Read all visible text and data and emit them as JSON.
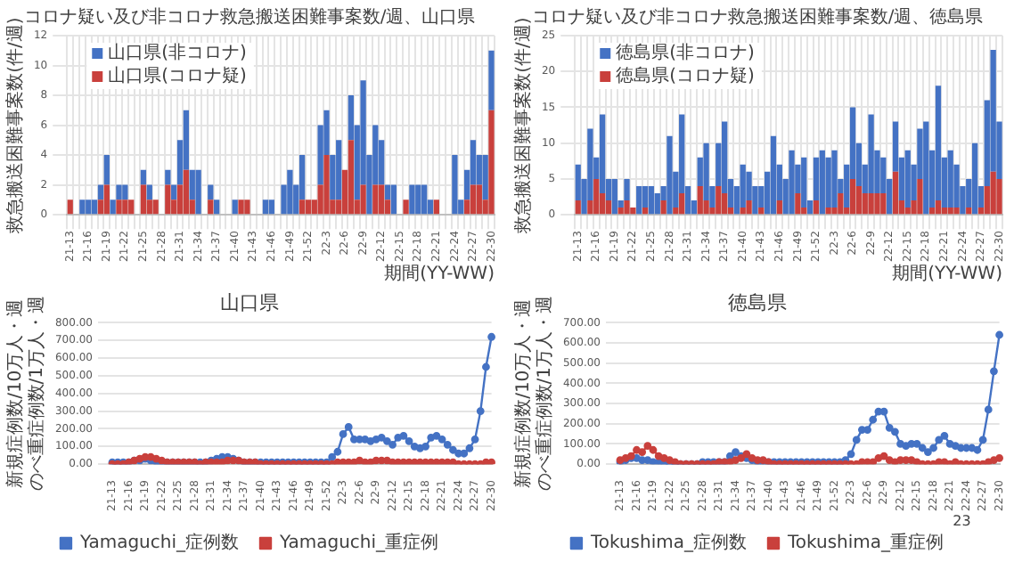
{
  "chart_data": [
    {
      "type": "bar",
      "title": "コロナ疑い及び非コロナ救急搬送困難事案数/週、山口県",
      "xlabel": "期間(YY-WW)",
      "ylabel": "救急搬送困難事案数(件/週)",
      "stacked": true,
      "grid": true,
      "legend": "top left",
      "categories": [
        "21-13",
        null,
        null,
        "21-16",
        null,
        null,
        "21-19",
        null,
        null,
        "21-22",
        null,
        null,
        "21-25",
        null,
        null,
        "21-28",
        null,
        null,
        "21-31",
        null,
        null,
        "21-34",
        null,
        null,
        "21-37",
        null,
        null,
        "21-40",
        null,
        null,
        "21-43",
        null,
        null,
        "21-46",
        null,
        null,
        "21-49",
        null,
        null,
        "21-52",
        null,
        null,
        "22-3",
        null,
        null,
        "22-6",
        null,
        null,
        "22-9",
        null,
        null,
        "22-12",
        null,
        null,
        "22-15",
        null,
        null,
        "22-18",
        null,
        null,
        "22-21",
        null,
        null,
        "22-24",
        null,
        null,
        "22-27",
        null,
        null,
        "22-30"
      ],
      "ylim": [
        0,
        12
      ],
      "yticks": [
        0,
        2,
        4,
        6,
        8,
        10,
        12
      ],
      "series": [
        {
          "name": "山口県(コロナ疑)",
          "color": "#c9403c",
          "values": [
            1,
            0,
            0,
            0,
            0,
            1,
            2,
            0,
            1,
            1,
            1,
            0,
            2,
            1,
            1,
            0,
            2,
            1,
            2,
            3,
            1,
            0,
            0,
            1,
            0,
            0,
            0,
            0,
            1,
            1,
            0,
            0,
            0,
            0,
            0,
            0,
            0,
            0,
            1,
            1,
            1,
            2,
            4,
            1,
            1,
            3,
            5,
            1,
            2,
            0,
            2,
            2,
            1,
            0,
            0,
            1,
            0,
            0,
            0,
            0,
            1,
            0,
            0,
            0,
            0,
            1,
            2,
            2,
            1,
            7
          ]
        },
        {
          "name": "山口県(非コロナ)",
          "color": "#4472c4",
          "values": [
            0,
            0,
            1,
            1,
            1,
            1,
            2,
            1,
            1,
            1,
            0,
            0,
            1,
            1,
            0,
            0,
            1,
            1,
            3,
            4,
            2,
            3,
            0,
            1,
            1,
            0,
            0,
            1,
            0,
            0,
            0,
            0,
            1,
            1,
            0,
            2,
            3,
            2,
            3,
            0,
            0,
            4,
            3,
            3,
            4,
            0,
            3,
            5,
            7,
            4,
            4,
            3,
            1,
            2,
            0,
            0,
            2,
            2,
            2,
            1,
            0,
            0,
            0,
            4,
            1,
            2,
            3,
            2,
            3,
            4
          ]
        }
      ]
    },
    {
      "type": "bar",
      "title": "コロナ疑い及び非コロナ救急搬送困難事案数/週、徳島県",
      "xlabel": "期間(YY-WW)",
      "ylabel": "救急搬送困難事案数(件/週)",
      "stacked": true,
      "grid": true,
      "legend": "top left",
      "categories": [
        "21-13",
        null,
        null,
        "21-16",
        null,
        null,
        "21-19",
        null,
        null,
        "21-22",
        null,
        null,
        "21-25",
        null,
        null,
        "21-28",
        null,
        null,
        "21-31",
        null,
        null,
        "21-34",
        null,
        null,
        "21-37",
        null,
        null,
        "21-40",
        null,
        null,
        "21-43",
        null,
        null,
        "21-46",
        null,
        null,
        "21-49",
        null,
        null,
        "21-52",
        null,
        null,
        "22-3",
        null,
        null,
        "22-6",
        null,
        null,
        "22-9",
        null,
        null,
        "22-12",
        null,
        null,
        "22-15",
        null,
        null,
        "22-18",
        null,
        null,
        "22-21",
        null,
        null,
        "22-24",
        null,
        null,
        "22-27",
        null,
        null,
        "22-30"
      ],
      "ylim": [
        0,
        25
      ],
      "yticks": [
        0,
        5,
        10,
        15,
        20,
        25
      ],
      "series": [
        {
          "name": "徳島県(コロナ疑)",
          "color": "#c9403c",
          "values": [
            2,
            0,
            2,
            5,
            3,
            2,
            0,
            1,
            2,
            1,
            0,
            1,
            0,
            0,
            2,
            0,
            1,
            3,
            0,
            0,
            4,
            2,
            1,
            4,
            3,
            1,
            0,
            1,
            2,
            0,
            1,
            0,
            0,
            2,
            0,
            0,
            3,
            1,
            0,
            2,
            0,
            1,
            1,
            3,
            1,
            5,
            4,
            3,
            3,
            3,
            3,
            0,
            6,
            2,
            1,
            2,
            5,
            0,
            1,
            2,
            1,
            1,
            1,
            0,
            1,
            0,
            1,
            4,
            6,
            5
          ]
        },
        {
          "name": "徳島県(非コロナ)",
          "color": "#4472c4",
          "values": [
            5,
            5,
            10,
            3,
            11,
            3,
            5,
            1,
            3,
            0,
            4,
            3,
            4,
            3,
            2,
            11,
            5,
            11,
            4,
            2,
            4,
            8,
            3,
            6,
            10,
            4,
            4,
            6,
            4,
            4,
            3,
            6,
            11,
            5,
            5,
            9,
            4,
            7,
            2,
            6,
            9,
            7,
            8,
            2,
            6,
            10,
            6,
            4,
            11,
            6,
            5,
            5,
            7,
            6,
            8,
            5,
            7,
            13,
            8,
            16,
            7,
            8,
            6,
            4,
            4,
            10,
            3,
            12,
            17,
            8
          ]
        }
      ]
    },
    {
      "type": "line",
      "title": "山口県",
      "ylabel": "新規症例数/10万人・週のべ重症例数/1万人・週",
      "grid": "y",
      "legend": "bottom",
      "marker": "circle",
      "line_style": "solid",
      "categories": [
        "21-13",
        null,
        null,
        "21-16",
        null,
        null,
        "21-19",
        null,
        null,
        "21-22",
        null,
        null,
        "21-25",
        null,
        null,
        "21-28",
        null,
        null,
        "21-31",
        null,
        null,
        "21-34",
        null,
        null,
        "21-37",
        null,
        null,
        "21-40",
        null,
        null,
        "21-43",
        null,
        null,
        "21-46",
        null,
        null,
        "21-49",
        null,
        null,
        "21-52",
        null,
        null,
        "22-3",
        null,
        null,
        "22-6",
        null,
        null,
        "22-9",
        null,
        null,
        "22-12",
        null,
        null,
        "22-15",
        null,
        null,
        "22-18",
        null,
        null,
        "22-21",
        null,
        null,
        "22-24",
        null,
        null,
        "22-27",
        null,
        null,
        "22-30"
      ],
      "ylim": [
        0,
        800
      ],
      "yticks": [
        {
          "value": 0,
          "label": "0.00"
        },
        {
          "value": 100,
          "label": "100.00"
        },
        {
          "value": 200,
          "label": "200.00"
        },
        {
          "value": 300,
          "label": "300.00"
        },
        {
          "value": 400,
          "label": "400.00"
        },
        {
          "value": 500,
          "label": "500.00"
        },
        {
          "value": 600,
          "label": "600.00"
        },
        {
          "value": 700,
          "label": "700.00"
        },
        {
          "value": 800,
          "label": "800.00"
        }
      ],
      "series": [
        {
          "name": "Yamaguchi_症例数",
          "color": "#4472c4",
          "values": [
            10,
            10,
            10,
            10,
            20,
            20,
            30,
            20,
            10,
            10,
            10,
            10,
            10,
            10,
            10,
            10,
            10,
            10,
            20,
            30,
            40,
            40,
            30,
            20,
            10,
            10,
            10,
            10,
            10,
            10,
            10,
            10,
            10,
            10,
            10,
            10,
            10,
            10,
            10,
            10,
            40,
            70,
            170,
            210,
            140,
            140,
            140,
            130,
            140,
            150,
            130,
            110,
            150,
            160,
            130,
            100,
            90,
            100,
            150,
            160,
            140,
            110,
            80,
            60,
            60,
            90,
            140,
            300,
            550,
            720
          ]
        },
        {
          "name": "Yamaguchi_重症例",
          "color": "#c9403c",
          "values": [
            0,
            0,
            0,
            10,
            20,
            30,
            40,
            40,
            30,
            20,
            10,
            10,
            10,
            10,
            10,
            10,
            0,
            10,
            10,
            10,
            10,
            20,
            20,
            20,
            10,
            10,
            10,
            0,
            0,
            0,
            0,
            0,
            0,
            0,
            0,
            0,
            0,
            0,
            0,
            0,
            0,
            10,
            10,
            10,
            10,
            20,
            10,
            10,
            20,
            20,
            20,
            10,
            10,
            10,
            10,
            10,
            10,
            10,
            10,
            10,
            10,
            10,
            10,
            0,
            0,
            0,
            0,
            0,
            10,
            10
          ]
        }
      ]
    },
    {
      "type": "line",
      "title": "徳島県",
      "ylabel": "新規症例数/10万人・週のべ重症例数/1万人・週",
      "grid": "y",
      "legend": "bottom",
      "marker": "circle",
      "line_style": "solid",
      "annotations": [
        "23"
      ],
      "categories": [
        "21-13",
        null,
        null,
        "21-16",
        null,
        null,
        "21-19",
        null,
        null,
        "21-22",
        null,
        null,
        "21-25",
        null,
        null,
        "21-28",
        null,
        null,
        "21-31",
        null,
        null,
        "21-34",
        null,
        null,
        "21-37",
        null,
        null,
        "21-40",
        null,
        null,
        "21-43",
        null,
        null,
        "21-46",
        null,
        null,
        "21-49",
        null,
        null,
        "21-52",
        null,
        null,
        "22-3",
        null,
        null,
        "22-6",
        null,
        null,
        "22-9",
        null,
        null,
        "22-12",
        null,
        null,
        "22-15",
        null,
        null,
        "22-18",
        null,
        null,
        "22-21",
        null,
        null,
        "22-24",
        null,
        null,
        "22-27",
        null,
        null,
        "22-30"
      ],
      "ylim": [
        0,
        700
      ],
      "yticks": [
        {
          "value": 0,
          "label": "0.00"
        },
        {
          "value": 100,
          "label": "100.00"
        },
        {
          "value": 200,
          "label": "200.00"
        },
        {
          "value": 300,
          "label": "300.00"
        },
        {
          "value": 400,
          "label": "400.00"
        },
        {
          "value": 500,
          "label": "500.00"
        },
        {
          "value": 600,
          "label": "600.00"
        },
        {
          "value": 700,
          "label": "700.00"
        }
      ],
      "series": [
        {
          "name": "Tokushima_症例数",
          "color": "#4472c4",
          "values": [
            10,
            20,
            30,
            30,
            20,
            20,
            10,
            10,
            0,
            0,
            0,
            0,
            0,
            0,
            0,
            10,
            10,
            10,
            10,
            10,
            40,
            60,
            40,
            30,
            20,
            10,
            10,
            10,
            10,
            10,
            10,
            10,
            10,
            10,
            10,
            10,
            10,
            10,
            10,
            10,
            10,
            20,
            50,
            120,
            170,
            170,
            220,
            260,
            260,
            180,
            160,
            100,
            90,
            100,
            100,
            80,
            60,
            80,
            120,
            140,
            100,
            90,
            80,
            80,
            80,
            70,
            120,
            270,
            460,
            640
          ]
        },
        {
          "name": "Tokushima_重症例",
          "color": "#c9403c",
          "values": [
            20,
            30,
            40,
            70,
            60,
            90,
            70,
            40,
            30,
            20,
            10,
            0,
            0,
            0,
            0,
            0,
            0,
            0,
            10,
            10,
            10,
            20,
            30,
            50,
            30,
            20,
            20,
            10,
            0,
            0,
            0,
            0,
            0,
            0,
            0,
            0,
            0,
            0,
            0,
            0,
            0,
            0,
            0,
            0,
            10,
            10,
            10,
            30,
            40,
            20,
            10,
            20,
            20,
            20,
            10,
            0,
            0,
            0,
            10,
            10,
            0,
            10,
            0,
            0,
            0,
            0,
            0,
            10,
            20,
            30
          ]
        }
      ]
    }
  ]
}
